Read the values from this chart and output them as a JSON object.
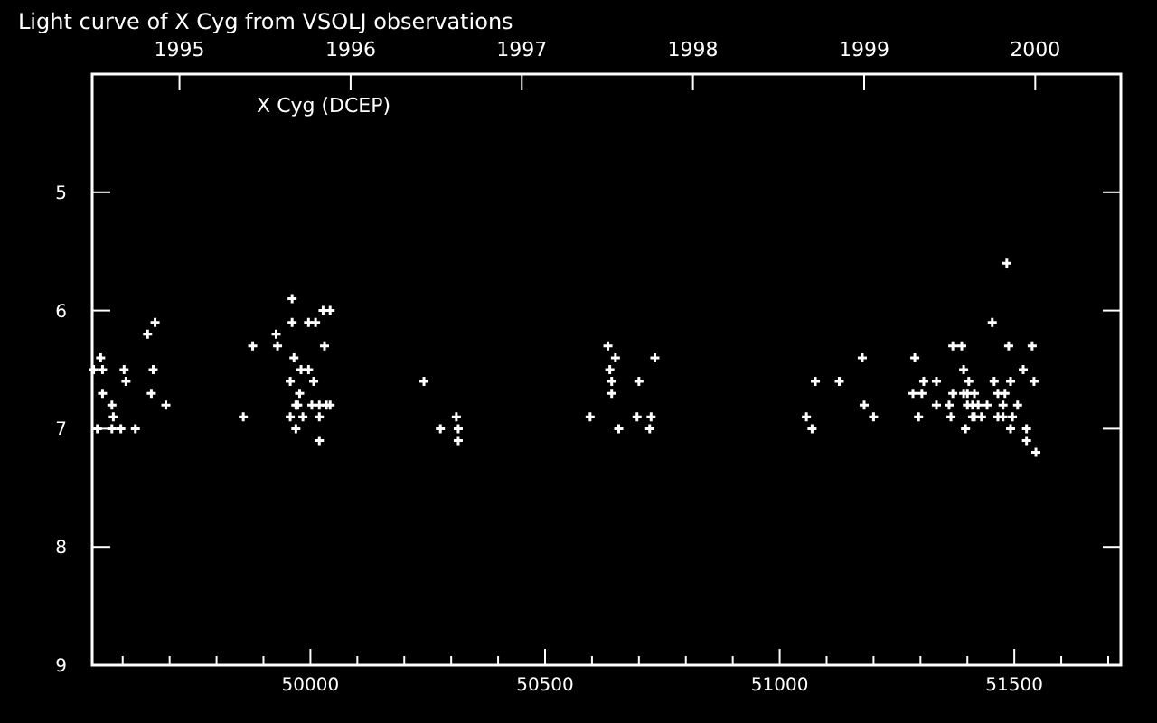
{
  "chart_data": {
    "type": "scatter",
    "title": "Light curve of X Cyg from VSOLJ observations",
    "annotations": [
      "X Cyg (DCEP)"
    ],
    "xlim": [
      49535,
      51727
    ],
    "xticks": [
      {
        "value": 49600,
        "label": null
      },
      {
        "value": 49700,
        "label": null
      },
      {
        "value": 49800,
        "label": null
      },
      {
        "value": 49900,
        "label": null
      },
      50000,
      {
        "value": 50100,
        "label": null
      },
      {
        "value": 50200,
        "label": null
      },
      {
        "value": 50300,
        "label": null
      },
      {
        "value": 50400,
        "label": null
      },
      50500,
      {
        "value": 50600,
        "label": null
      },
      {
        "value": 50700,
        "label": null
      },
      {
        "value": 50800,
        "label": null
      },
      {
        "value": 50900,
        "label": null
      },
      51000,
      {
        "value": 51100,
        "label": null
      },
      {
        "value": 51200,
        "label": null
      },
      {
        "value": 51300,
        "label": null
      },
      {
        "value": 51400,
        "label": null
      },
      51500,
      {
        "value": 51600,
        "label": null
      },
      {
        "value": 51700,
        "label": null
      }
    ],
    "x2lim": [
      1994.49,
      2000.5
    ],
    "x2ticks": [
      1995,
      1996,
      1997,
      1998,
      1999,
      2000
    ],
    "ylim": [
      9,
      4
    ],
    "yticks": [
      5,
      6,
      7,
      8,
      9
    ],
    "grid": false,
    "marker": "cross",
    "series": [
      {
        "color": "#ffffff",
        "x": [
          49961,
          50027,
          50042,
          49669,
          49961,
          49996,
          50011,
          51453,
          49653,
          49927,
          49877,
          49930,
          50030,
          50634,
          51369,
          51388,
          51488,
          51538,
          49553,
          49965,
          50650,
          50734,
          51176,
          51288,
          49538,
          49557,
          49603,
          49665,
          49980,
          49996,
          50638,
          51392,
          51519,
          49607,
          49957,
          50007,
          50242,
          50642,
          50700,
          51076,
          51127,
          51307,
          51334,
          51403,
          51457,
          51492,
          51542,
          49557,
          49661,
          49977,
          50642,
          51284,
          51303,
          51369,
          51392,
          51400,
          51415,
          51465,
          51480,
          49577,
          49692,
          49969,
          49973,
          50003,
          50019,
          50034,
          50042,
          51180,
          51334,
          51361,
          51400,
          51411,
          51423,
          51442,
          51476,
          51507,
          49580,
          49857,
          49957,
          49984,
          50019,
          50311,
          50596,
          50696,
          50726,
          51057,
          51200,
          51296,
          51365,
          51411,
          51415,
          51430,
          51465,
          51476,
          51496,
          49546,
          49577,
          49596,
          49627,
          49969,
          50277,
          50315,
          50657,
          50723,
          51069,
          51396,
          51492,
          51526,
          50019,
          50315,
          51526,
          51546,
          51484
        ],
        "values": [
          5.9,
          6.0,
          6.0,
          6.1,
          6.1,
          6.1,
          6.1,
          6.1,
          6.2,
          6.2,
          6.3,
          6.3,
          6.3,
          6.3,
          6.3,
          6.3,
          6.3,
          6.3,
          6.4,
          6.4,
          6.4,
          6.4,
          6.4,
          6.4,
          6.5,
          6.5,
          6.5,
          6.5,
          6.5,
          6.5,
          6.5,
          6.5,
          6.5,
          6.6,
          6.6,
          6.6,
          6.6,
          6.6,
          6.6,
          6.6,
          6.6,
          6.6,
          6.6,
          6.6,
          6.6,
          6.6,
          6.6,
          6.7,
          6.7,
          6.7,
          6.7,
          6.7,
          6.7,
          6.7,
          6.7,
          6.7,
          6.7,
          6.7,
          6.7,
          6.8,
          6.8,
          6.8,
          6.8,
          6.8,
          6.8,
          6.8,
          6.8,
          6.8,
          6.8,
          6.8,
          6.8,
          6.8,
          6.8,
          6.8,
          6.8,
          6.8,
          6.9,
          6.9,
          6.9,
          6.9,
          6.9,
          6.9,
          6.9,
          6.9,
          6.9,
          6.9,
          6.9,
          6.9,
          6.9,
          6.9,
          6.9,
          6.9,
          6.9,
          6.9,
          6.9,
          7.0,
          7.0,
          7.0,
          7.0,
          7.0,
          7.0,
          7.0,
          7.0,
          7.0,
          7.0,
          7.0,
          7.0,
          7.0,
          7.1,
          7.1,
          7.1,
          7.2,
          5.6
        ]
      }
    ]
  }
}
